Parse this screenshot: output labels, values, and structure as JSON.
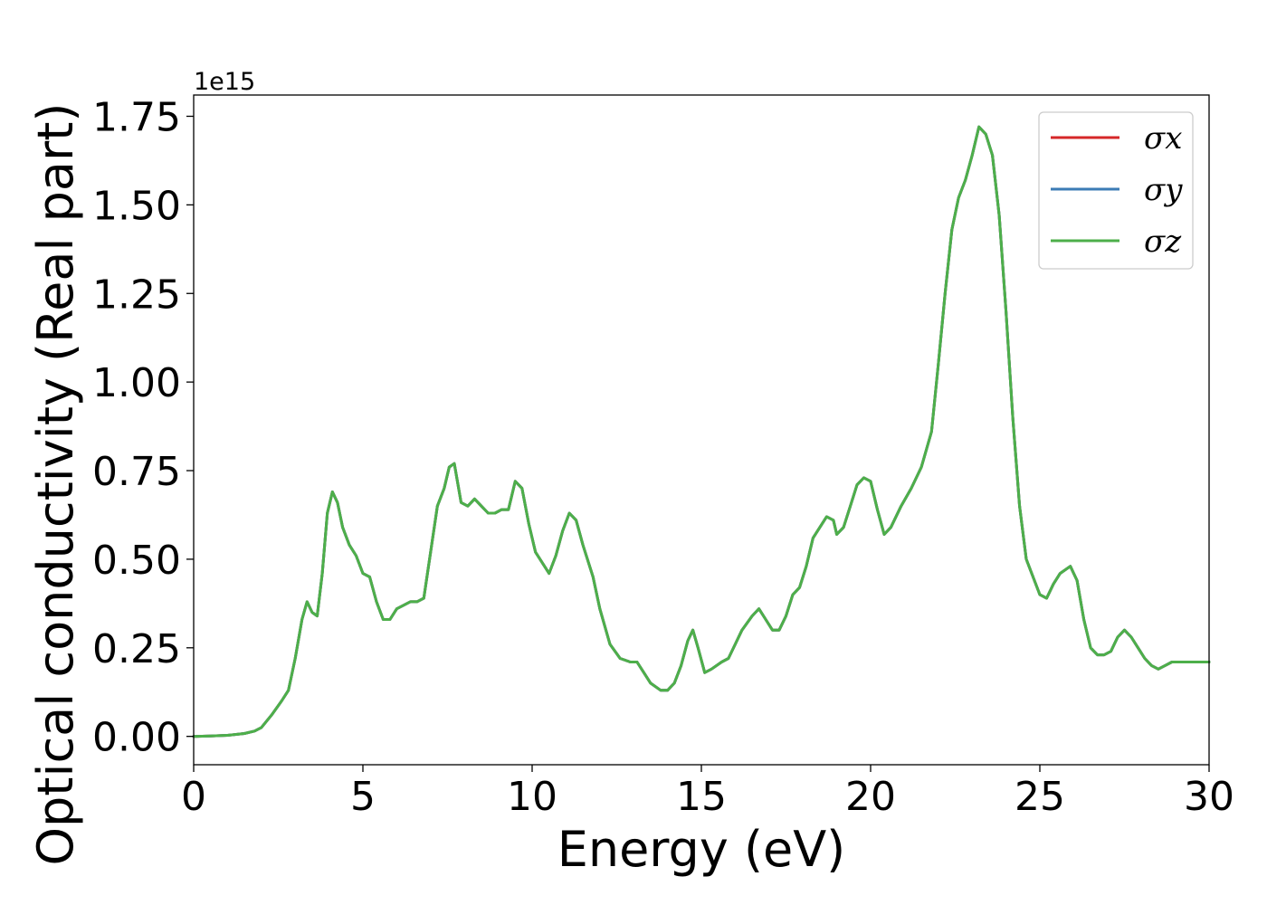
{
  "chart_data": {
    "type": "line",
    "title": "",
    "xlabel": "Energy (eV)",
    "ylabel": "Optical conductivity (Real part)",
    "y_offset_label": "1e15",
    "xlim": [
      0,
      30
    ],
    "ylim": [
      -0.08,
      1.81
    ],
    "x_ticks": [
      0,
      5,
      10,
      15,
      20,
      25,
      30
    ],
    "x_tick_labels": [
      "0",
      "5",
      "10",
      "15",
      "20",
      "25",
      "30"
    ],
    "y_ticks": [
      0.0,
      0.25,
      0.5,
      0.75,
      1.0,
      1.25,
      1.5,
      1.75
    ],
    "y_tick_labels": [
      "0.00",
      "0.25",
      "0.50",
      "0.75",
      "1.00",
      "1.25",
      "1.50",
      "1.75"
    ],
    "grid": false,
    "legend_position": "top-right",
    "x": [
      0.0,
      0.5,
      1.0,
      1.5,
      1.8,
      2.0,
      2.3,
      2.6,
      2.8,
      3.0,
      3.2,
      3.35,
      3.5,
      3.65,
      3.8,
      3.95,
      4.1,
      4.25,
      4.4,
      4.6,
      4.8,
      5.0,
      5.2,
      5.4,
      5.6,
      5.8,
      6.0,
      6.2,
      6.4,
      6.6,
      6.8,
      7.0,
      7.2,
      7.4,
      7.55,
      7.7,
      7.9,
      8.1,
      8.3,
      8.5,
      8.7,
      8.9,
      9.1,
      9.3,
      9.5,
      9.7,
      9.9,
      10.1,
      10.3,
      10.5,
      10.7,
      10.9,
      11.1,
      11.3,
      11.5,
      11.8,
      12.0,
      12.3,
      12.6,
      12.9,
      13.1,
      13.3,
      13.5,
      13.8,
      14.0,
      14.2,
      14.4,
      14.6,
      14.75,
      14.9,
      15.1,
      15.3,
      15.6,
      15.8,
      16.0,
      16.2,
      16.5,
      16.7,
      16.9,
      17.1,
      17.3,
      17.5,
      17.7,
      17.9,
      18.1,
      18.3,
      18.5,
      18.7,
      18.9,
      19.0,
      19.2,
      19.4,
      19.6,
      19.8,
      20.0,
      20.2,
      20.4,
      20.6,
      20.9,
      21.2,
      21.5,
      21.8,
      22.0,
      22.2,
      22.4,
      22.6,
      22.8,
      23.0,
      23.2,
      23.4,
      23.6,
      23.8,
      24.0,
      24.2,
      24.4,
      24.6,
      24.8,
      25.0,
      25.2,
      25.4,
      25.6,
      25.9,
      26.1,
      26.3,
      26.5,
      26.7,
      26.9,
      27.1,
      27.3,
      27.5,
      27.7,
      27.9,
      28.1,
      28.3,
      28.5,
      28.7,
      28.9,
      29.1,
      29.3,
      29.6,
      30.0
    ],
    "series": [
      {
        "name": "σx",
        "color": "#d62728",
        "values": [
          0.0,
          0.001,
          0.003,
          0.008,
          0.015,
          0.025,
          0.06,
          0.1,
          0.13,
          0.22,
          0.33,
          0.38,
          0.35,
          0.34,
          0.46,
          0.63,
          0.69,
          0.66,
          0.59,
          0.54,
          0.51,
          0.46,
          0.45,
          0.38,
          0.33,
          0.33,
          0.36,
          0.37,
          0.38,
          0.38,
          0.39,
          0.52,
          0.65,
          0.7,
          0.76,
          0.77,
          0.66,
          0.65,
          0.67,
          0.65,
          0.63,
          0.63,
          0.64,
          0.64,
          0.72,
          0.7,
          0.6,
          0.52,
          0.49,
          0.46,
          0.51,
          0.58,
          0.63,
          0.61,
          0.54,
          0.45,
          0.36,
          0.26,
          0.22,
          0.21,
          0.21,
          0.18,
          0.15,
          0.13,
          0.13,
          0.15,
          0.2,
          0.27,
          0.3,
          0.25,
          0.18,
          0.19,
          0.21,
          0.22,
          0.26,
          0.3,
          0.34,
          0.36,
          0.33,
          0.3,
          0.3,
          0.34,
          0.4,
          0.42,
          0.48,
          0.56,
          0.59,
          0.62,
          0.61,
          0.57,
          0.59,
          0.65,
          0.71,
          0.73,
          0.72,
          0.64,
          0.57,
          0.59,
          0.65,
          0.7,
          0.76,
          0.86,
          1.05,
          1.25,
          1.43,
          1.52,
          1.57,
          1.64,
          1.72,
          1.7,
          1.64,
          1.47,
          1.2,
          0.9,
          0.65,
          0.5,
          0.45,
          0.4,
          0.39,
          0.43,
          0.46,
          0.48,
          0.44,
          0.33,
          0.25,
          0.23,
          0.23,
          0.24,
          0.28,
          0.3,
          0.28,
          0.25,
          0.22,
          0.2,
          0.19,
          0.2,
          0.21,
          0.21,
          0.21,
          0.21,
          0.21
        ]
      },
      {
        "name": "σy",
        "color": "#3b7bb5",
        "values": [
          0.0,
          0.001,
          0.003,
          0.008,
          0.015,
          0.025,
          0.06,
          0.1,
          0.13,
          0.22,
          0.33,
          0.38,
          0.35,
          0.34,
          0.46,
          0.63,
          0.69,
          0.66,
          0.59,
          0.54,
          0.51,
          0.46,
          0.45,
          0.38,
          0.33,
          0.33,
          0.36,
          0.37,
          0.38,
          0.38,
          0.39,
          0.52,
          0.65,
          0.7,
          0.76,
          0.77,
          0.66,
          0.65,
          0.67,
          0.65,
          0.63,
          0.63,
          0.64,
          0.64,
          0.72,
          0.7,
          0.6,
          0.52,
          0.49,
          0.46,
          0.51,
          0.58,
          0.63,
          0.61,
          0.54,
          0.45,
          0.36,
          0.26,
          0.22,
          0.21,
          0.21,
          0.18,
          0.15,
          0.13,
          0.13,
          0.15,
          0.2,
          0.27,
          0.3,
          0.25,
          0.18,
          0.19,
          0.21,
          0.22,
          0.26,
          0.3,
          0.34,
          0.36,
          0.33,
          0.3,
          0.3,
          0.34,
          0.4,
          0.42,
          0.48,
          0.56,
          0.59,
          0.62,
          0.61,
          0.57,
          0.59,
          0.65,
          0.71,
          0.73,
          0.72,
          0.64,
          0.57,
          0.59,
          0.65,
          0.7,
          0.76,
          0.86,
          1.05,
          1.25,
          1.43,
          1.52,
          1.57,
          1.64,
          1.72,
          1.7,
          1.64,
          1.47,
          1.2,
          0.9,
          0.65,
          0.5,
          0.45,
          0.4,
          0.39,
          0.43,
          0.46,
          0.48,
          0.44,
          0.33,
          0.25,
          0.23,
          0.23,
          0.24,
          0.28,
          0.3,
          0.28,
          0.25,
          0.22,
          0.2,
          0.19,
          0.2,
          0.21,
          0.21,
          0.21,
          0.21,
          0.21
        ]
      },
      {
        "name": "σz",
        "color": "#4daf4a",
        "values": [
          0.0,
          0.001,
          0.003,
          0.008,
          0.015,
          0.025,
          0.06,
          0.1,
          0.13,
          0.22,
          0.33,
          0.38,
          0.35,
          0.34,
          0.46,
          0.63,
          0.69,
          0.66,
          0.59,
          0.54,
          0.51,
          0.46,
          0.45,
          0.38,
          0.33,
          0.33,
          0.36,
          0.37,
          0.38,
          0.38,
          0.39,
          0.52,
          0.65,
          0.7,
          0.76,
          0.77,
          0.66,
          0.65,
          0.67,
          0.65,
          0.63,
          0.63,
          0.64,
          0.64,
          0.72,
          0.7,
          0.6,
          0.52,
          0.49,
          0.46,
          0.51,
          0.58,
          0.63,
          0.61,
          0.54,
          0.45,
          0.36,
          0.26,
          0.22,
          0.21,
          0.21,
          0.18,
          0.15,
          0.13,
          0.13,
          0.15,
          0.2,
          0.27,
          0.3,
          0.25,
          0.18,
          0.19,
          0.21,
          0.22,
          0.26,
          0.3,
          0.34,
          0.36,
          0.33,
          0.3,
          0.3,
          0.34,
          0.4,
          0.42,
          0.48,
          0.56,
          0.59,
          0.62,
          0.61,
          0.57,
          0.59,
          0.65,
          0.71,
          0.73,
          0.72,
          0.64,
          0.57,
          0.59,
          0.65,
          0.7,
          0.76,
          0.86,
          1.05,
          1.25,
          1.43,
          1.52,
          1.57,
          1.64,
          1.72,
          1.7,
          1.64,
          1.47,
          1.2,
          0.9,
          0.65,
          0.5,
          0.45,
          0.4,
          0.39,
          0.43,
          0.46,
          0.48,
          0.44,
          0.33,
          0.25,
          0.23,
          0.23,
          0.24,
          0.28,
          0.3,
          0.28,
          0.25,
          0.22,
          0.2,
          0.19,
          0.2,
          0.21,
          0.21,
          0.21,
          0.21,
          0.21
        ]
      }
    ]
  }
}
